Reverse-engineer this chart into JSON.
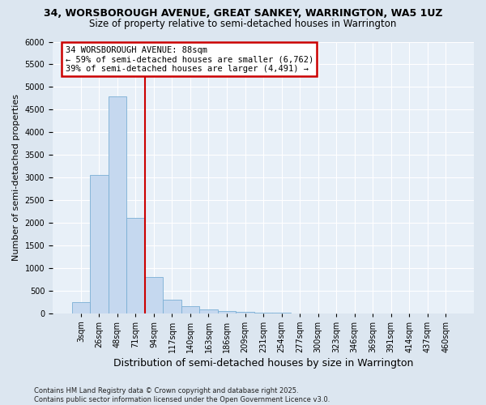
{
  "title_line1": "34, WORSBOROUGH AVENUE, GREAT SANKEY, WARRINGTON, WA5 1UZ",
  "title_line2": "Size of property relative to semi-detached houses in Warrington",
  "xlabel": "Distribution of semi-detached houses by size in Warrington",
  "ylabel": "Number of semi-detached properties",
  "footnote": "Contains HM Land Registry data © Crown copyright and database right 2025.\nContains public sector information licensed under the Open Government Licence v3.0.",
  "bar_labels": [
    "3sqm",
    "26sqm",
    "48sqm",
    "71sqm",
    "94sqm",
    "117sqm",
    "140sqm",
    "163sqm",
    "186sqm",
    "209sqm",
    "231sqm",
    "254sqm",
    "277sqm",
    "300sqm",
    "323sqm",
    "346sqm",
    "369sqm",
    "391sqm",
    "414sqm",
    "437sqm",
    "460sqm"
  ],
  "bar_values": [
    250,
    3050,
    4800,
    2100,
    800,
    300,
    150,
    80,
    50,
    20,
    5,
    2,
    0,
    0,
    0,
    0,
    0,
    0,
    0,
    0,
    0
  ],
  "bar_color": "#c5d8ef",
  "bar_edge_color": "#7aafd4",
  "vline_x": 3.5,
  "vline_color": "#cc0000",
  "ylim": [
    0,
    6000
  ],
  "yticks": [
    0,
    500,
    1000,
    1500,
    2000,
    2500,
    3000,
    3500,
    4000,
    4500,
    5000,
    5500,
    6000
  ],
  "annotation_title": "34 WORSBOROUGH AVENUE: 88sqm",
  "annotation_line1": "← 59% of semi-detached houses are smaller (6,762)",
  "annotation_line2": "39% of semi-detached houses are larger (4,491) →",
  "annotation_box_color": "#cc0000",
  "bg_color": "#dce6f0",
  "plot_bg_color": "#e8f0f8",
  "grid_color": "#ffffff",
  "title1_fontsize": 9,
  "title2_fontsize": 8.5,
  "ylabel_fontsize": 8,
  "xlabel_fontsize": 9,
  "tick_fontsize": 7,
  "annot_fontsize": 7.5,
  "footnote_fontsize": 6
}
